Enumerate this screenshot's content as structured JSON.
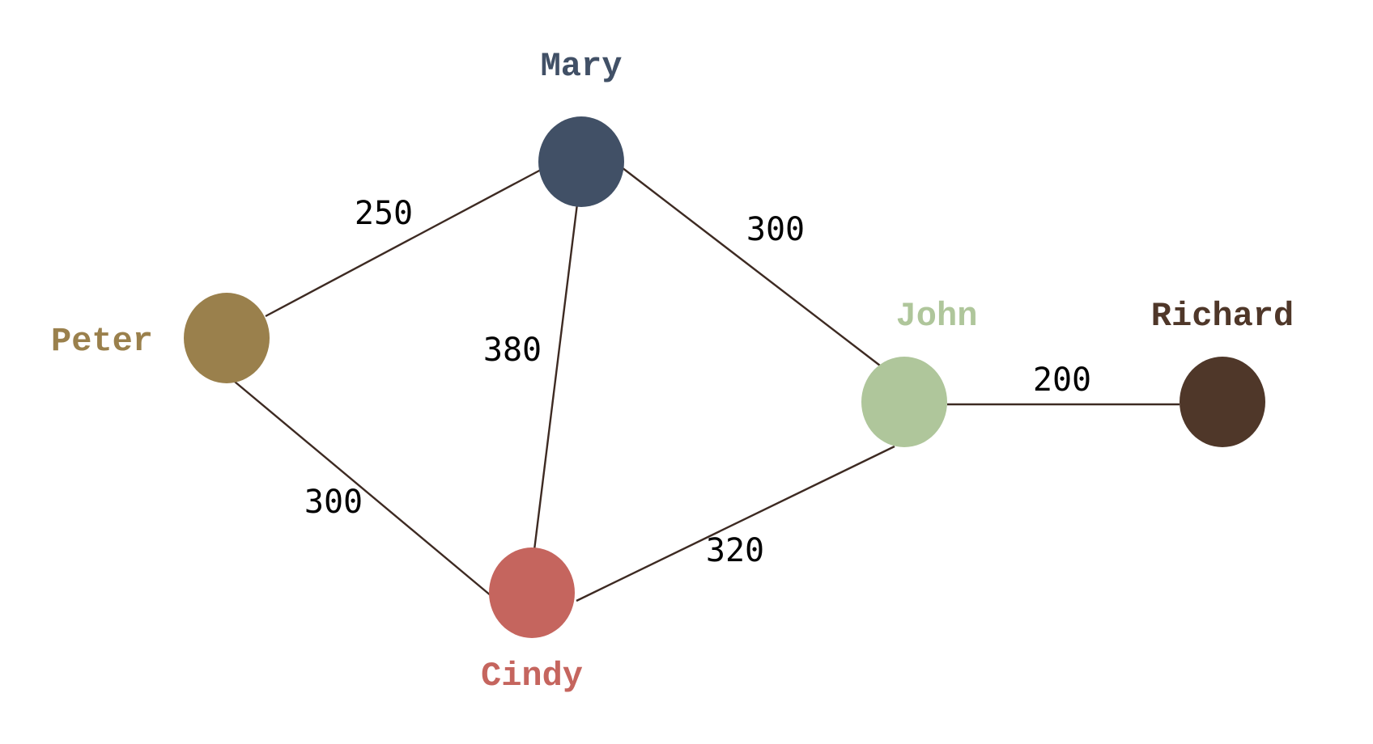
{
  "graph": {
    "nodes": [
      {
        "id": "mary",
        "label": "Mary",
        "color": "#415066"
      },
      {
        "id": "peter",
        "label": "Peter",
        "color": "#9a804c"
      },
      {
        "id": "john",
        "label": "John",
        "color": "#afc69b"
      },
      {
        "id": "cindy",
        "label": "Cindy",
        "color": "#c5655e"
      },
      {
        "id": "richard",
        "label": "Richard",
        "color": "#4f3729"
      }
    ],
    "edges": [
      {
        "from": "peter",
        "to": "mary",
        "weight": "250"
      },
      {
        "from": "mary",
        "to": "john",
        "weight": "300"
      },
      {
        "from": "mary",
        "to": "cindy",
        "weight": "380"
      },
      {
        "from": "peter",
        "to": "cindy",
        "weight": "300"
      },
      {
        "from": "cindy",
        "to": "john",
        "weight": "320"
      },
      {
        "from": "john",
        "to": "richard",
        "weight": "200"
      }
    ],
    "edge_color": "#3d2a22"
  }
}
